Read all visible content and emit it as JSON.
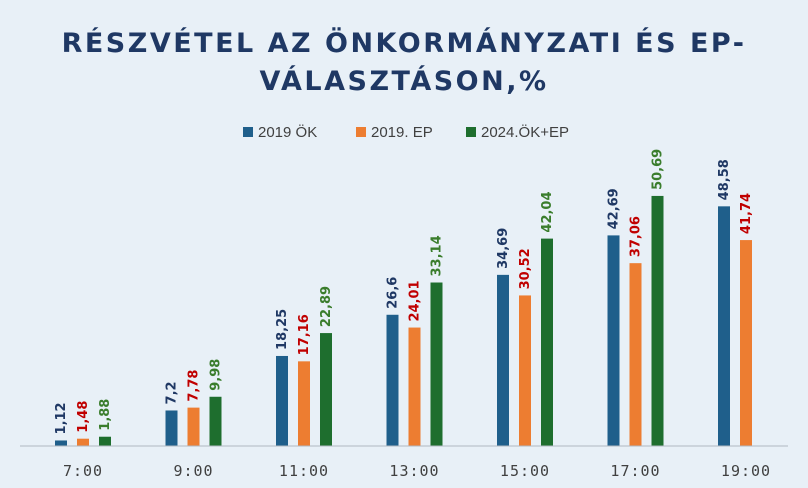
{
  "chart_data": {
    "type": "bar",
    "title_lines": [
      "RÉSZVÉTEL AZ ÖNKORMÁNYZATI ÉS EP-",
      "VÁLASZTÁSON,%"
    ],
    "categories": [
      "7:00",
      "9:00",
      "11:00",
      "13:00",
      "15:00",
      "17:00",
      "19:00"
    ],
    "series": [
      {
        "name": "2019 ÖK",
        "color": "#1f5f8b",
        "label_color": "#1f3864",
        "values": [
          1.12,
          7.2,
          18.25,
          26.6,
          34.69,
          42.69,
          48.58
        ],
        "labels": [
          "1,12",
          "7,2",
          "18,25",
          "26,6",
          "34,69",
          "42,69",
          "48,58"
        ]
      },
      {
        "name": "2019. EP",
        "color": "#ed7d31",
        "label_color": "#c00000",
        "values": [
          1.48,
          7.78,
          17.16,
          24.01,
          30.52,
          37.06,
          41.74
        ],
        "labels": [
          "1,48",
          "7,78",
          "17,16",
          "24,01",
          "30,52",
          "37,06",
          "41,74"
        ]
      },
      {
        "name": "2024.ÖK+EP",
        "color": "#1e6e2e",
        "label_color": "#3a7d2c",
        "values": [
          1.88,
          9.98,
          22.89,
          33.14,
          42.04,
          50.69,
          null
        ],
        "labels": [
          "1,88",
          "9,98",
          "22,89",
          "33,14",
          "42,04",
          "50,69",
          null
        ]
      }
    ],
    "ylim": [
      0,
      60
    ],
    "grid": false,
    "legend_position": "top-center",
    "title_color": "#1f3864"
  }
}
